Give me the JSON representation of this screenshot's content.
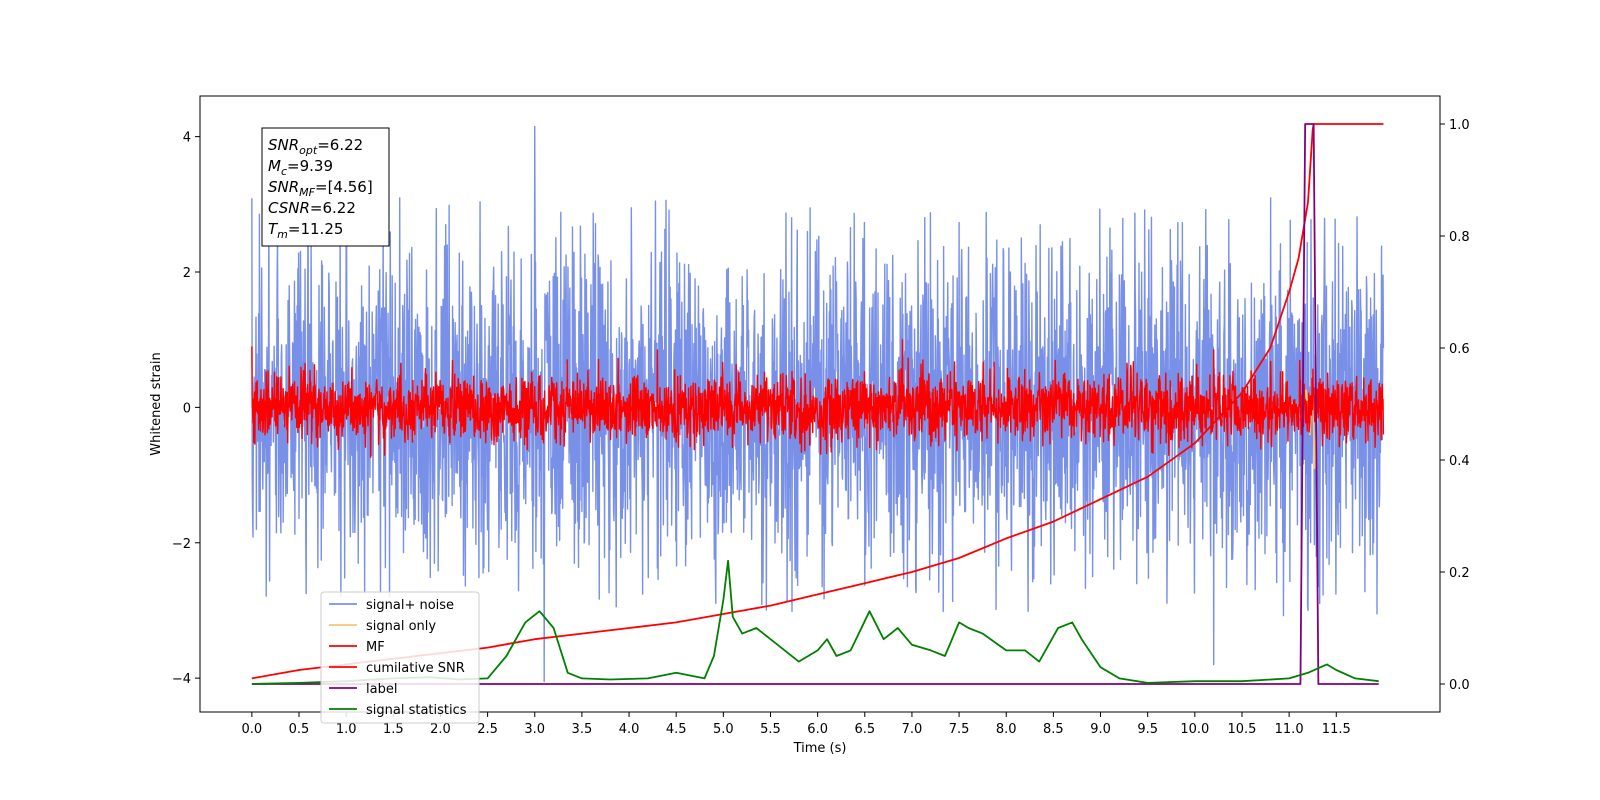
{
  "chart_data": {
    "type": "line",
    "xlabel": "Time (s)",
    "ylabel": "Whitened strain",
    "xlim": [
      -0.55,
      12.6
    ],
    "ylim_left": [
      -4.5,
      4.6
    ],
    "ylim_right": [
      -0.05,
      1.05
    ],
    "x_ticks": [
      0.0,
      0.5,
      1.0,
      1.5,
      2.0,
      2.5,
      3.0,
      3.5,
      4.0,
      4.5,
      5.0,
      5.5,
      6.0,
      6.5,
      7.0,
      7.5,
      8.0,
      8.5,
      9.0,
      9.5,
      10.0,
      10.5,
      11.0,
      11.5
    ],
    "x_tick_labels": [
      "0.0",
      "0.5",
      "1.0",
      "1.5",
      "2.0",
      "2.5",
      "3.0",
      "3.5",
      "4.0",
      "4.5",
      "5.0",
      "5.5",
      "6.0",
      "6.5",
      "7.0",
      "7.5",
      "8.0",
      "8.5",
      "9.0",
      "9.5",
      "10.0",
      "10.5",
      "11.0",
      "11.5"
    ],
    "y_left_ticks": [
      -4,
      -2,
      0,
      2,
      4
    ],
    "y_left_tick_labels": [
      "−4",
      "−2",
      "0",
      "2",
      "4"
    ],
    "y_right_ticks": [
      0.0,
      0.2,
      0.4,
      0.6,
      0.8,
      1.0
    ],
    "y_right_tick_labels": [
      "0.0",
      "0.2",
      "0.4",
      "0.6",
      "0.8",
      "1.0"
    ],
    "grid": false,
    "legend_position": "lower-left",
    "series": [
      {
        "name": "signal+ noise",
        "axis": "left",
        "color": "#7890e8",
        "description": "dense noisy strain",
        "x_range": [
          0.0,
          12.0
        ],
        "amplitude": 1.2,
        "peaks": [
          [
            3.0,
            4.15
          ],
          [
            1.0,
            2.6
          ],
          [
            3.1,
            -4.05
          ],
          [
            10.2,
            -3.8
          ],
          [
            11.2,
            -3.0
          ]
        ]
      },
      {
        "name": "signal only",
        "axis": "left",
        "color": "#f5c870",
        "x": [
          10.8,
          10.95,
          11.05,
          11.12,
          11.18,
          11.22,
          11.25,
          11.27,
          11.3
        ],
        "y": [
          0.02,
          -0.05,
          0.08,
          -0.15,
          0.25,
          -0.4,
          0.5,
          -0.9,
          0.0
        ]
      },
      {
        "name": "MF",
        "axis": "left",
        "color": "#ff0000",
        "description": "noisy matched filter",
        "x_range": [
          0.0,
          12.0
        ],
        "amplitude": 0.25,
        "peaks": [
          [
            0.0,
            0.9
          ],
          [
            6.9,
            1.0
          ],
          [
            10.2,
            0.85
          ],
          [
            4.3,
            0.85
          ]
        ]
      },
      {
        "name": "cumilative SNR",
        "axis": "right",
        "color": "#ff0000",
        "x": [
          0.0,
          0.5,
          1.0,
          1.5,
          2.0,
          2.5,
          3.0,
          3.5,
          4.0,
          4.5,
          5.0,
          5.5,
          6.0,
          6.5,
          7.0,
          7.5,
          8.0,
          8.5,
          9.0,
          9.5,
          10.0,
          10.5,
          10.8,
          11.0,
          11.1,
          11.2,
          11.25,
          11.26,
          11.5,
          12.0
        ],
        "y": [
          0.01,
          0.025,
          0.035,
          0.045,
          0.055,
          0.065,
          0.08,
          0.09,
          0.1,
          0.11,
          0.125,
          0.14,
          0.16,
          0.18,
          0.2,
          0.225,
          0.26,
          0.29,
          0.33,
          0.37,
          0.43,
          0.52,
          0.6,
          0.7,
          0.76,
          0.86,
          0.99,
          1.0,
          1.0,
          1.0
        ]
      },
      {
        "name": "label",
        "axis": "right",
        "color": "#800080",
        "x": [
          0.0,
          11.12,
          11.17,
          11.26,
          11.31,
          11.95
        ],
        "y": [
          0.0,
          0.0,
          1.0,
          1.0,
          0.0,
          0.0
        ]
      },
      {
        "name": "signal statistics",
        "axis": "right",
        "color": "#008000",
        "x": [
          0.0,
          0.5,
          1.0,
          1.5,
          1.9,
          2.2,
          2.5,
          2.7,
          2.9,
          3.05,
          3.2,
          3.35,
          3.5,
          3.8,
          4.2,
          4.5,
          4.8,
          4.9,
          5.0,
          5.05,
          5.1,
          5.2,
          5.35,
          5.5,
          5.8,
          6.0,
          6.1,
          6.2,
          6.35,
          6.55,
          6.7,
          6.85,
          7.0,
          7.2,
          7.35,
          7.5,
          7.6,
          7.75,
          8.0,
          8.2,
          8.35,
          8.55,
          8.7,
          8.8,
          9.0,
          9.2,
          9.5,
          10.0,
          10.5,
          11.0,
          11.2,
          11.4,
          11.5,
          11.7,
          11.95
        ],
        "y": [
          0.0,
          0.002,
          0.005,
          0.01,
          0.012,
          0.008,
          0.01,
          0.05,
          0.11,
          0.13,
          0.1,
          0.02,
          0.01,
          0.008,
          0.01,
          0.02,
          0.01,
          0.05,
          0.15,
          0.22,
          0.12,
          0.09,
          0.1,
          0.08,
          0.04,
          0.06,
          0.08,
          0.05,
          0.06,
          0.13,
          0.08,
          0.1,
          0.07,
          0.06,
          0.05,
          0.11,
          0.1,
          0.09,
          0.06,
          0.06,
          0.04,
          0.1,
          0.11,
          0.08,
          0.03,
          0.01,
          0.002,
          0.005,
          0.005,
          0.01,
          0.02,
          0.035,
          0.025,
          0.01,
          0.005
        ]
      }
    ],
    "annotation": {
      "lines": [
        {
          "sym": "SNR",
          "sub": "opt",
          "value": "=6.22"
        },
        {
          "sym": "M",
          "sub": "c",
          "value": "=9.39"
        },
        {
          "sym": "SNR",
          "sub": "MF",
          "value": "=[4.56]"
        },
        {
          "sym": "CSNR",
          "sub": "",
          "value": "=6.22"
        },
        {
          "sym": "T",
          "sub": "m",
          "value": "=11.25"
        }
      ]
    }
  }
}
